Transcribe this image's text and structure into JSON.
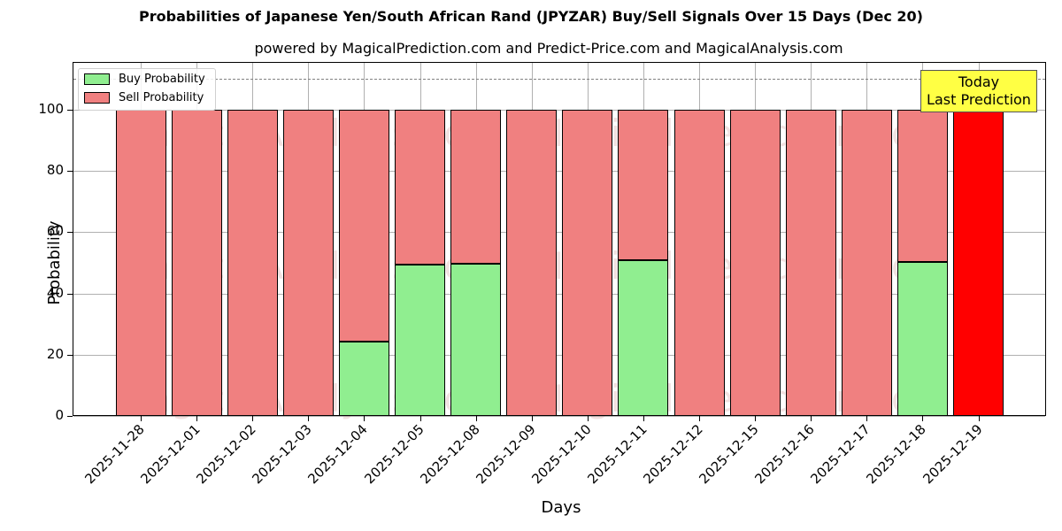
{
  "chart_data": {
    "type": "bar",
    "stacked": true,
    "title": "Probabilities of Japanese Yen/South African Rand (JPYZAR) Buy/Sell Signals Over 15 Days (Dec 20)",
    "subtitle": "powered by MagicalPrediction.com and Predict-Price.com and MagicalAnalysis.com",
    "xlabel": "Days",
    "ylabel": "Probability",
    "ylim": [
      0,
      115
    ],
    "yticks": [
      0,
      20,
      40,
      60,
      80,
      100
    ],
    "grid": true,
    "legend_position": "upper left",
    "categories": [
      "2025-11-28",
      "2025-12-01",
      "2025-12-02",
      "2025-12-03",
      "2025-12-04",
      "2025-12-05",
      "2025-12-08",
      "2025-12-09",
      "2025-12-10",
      "2025-12-11",
      "2025-12-12",
      "2025-12-15",
      "2025-12-16",
      "2025-12-17",
      "2025-12-18",
      "2025-12-19"
    ],
    "series": [
      {
        "name": "Buy Probability",
        "color": "#90ee90",
        "values": [
          0,
          0,
          0,
          0,
          24.3,
          49.4,
          49.7,
          0,
          0,
          50.9,
          0,
          0,
          0,
          0,
          50.4,
          0
        ]
      },
      {
        "name": "Sell Probability",
        "color": "#f08080",
        "values": [
          100,
          100,
          100,
          100,
          75.7,
          50.6,
          50.3,
          100,
          100,
          49.1,
          100,
          100,
          100,
          100,
          49.6,
          100
        ]
      }
    ],
    "highlight": {
      "index": 15,
      "color": "#ff0000",
      "label_line1": "Today",
      "label_line2": "Last Prediction"
    },
    "reference_line": {
      "y": 110,
      "style": "dashed",
      "color": "#808080"
    },
    "watermarks": [
      "MagicalAnalysis.com",
      "MagicalPrediction.com"
    ]
  }
}
